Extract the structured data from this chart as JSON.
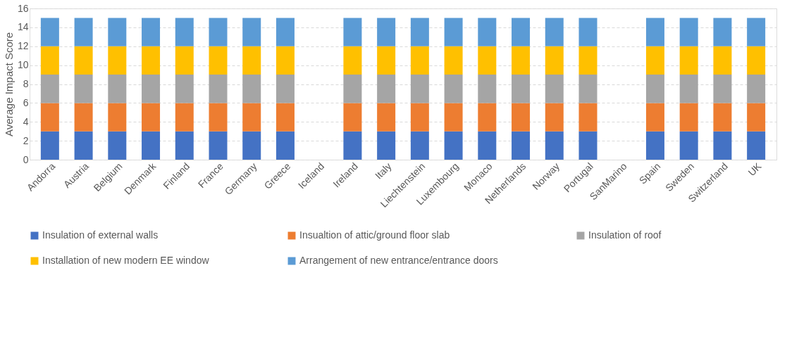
{
  "chart_data": {
    "type": "bar",
    "stacked": true,
    "ylabel": "Average Impact Score",
    "categories": [
      "Andorra",
      "Austria",
      "Belgium",
      "Denmark",
      "Finland",
      "France",
      "Germany",
      "Greece",
      "Iceland",
      "Ireland",
      "Italy",
      "Liechtenstein",
      "Luxembourg",
      "Monaco",
      "Netherlands",
      "Norway",
      "Portugal",
      "SanMarino",
      "Spain",
      "Sweden",
      "Switzerland",
      "UK"
    ],
    "series": [
      {
        "name": "Insulation of external walls",
        "color": "#4472c4",
        "values": [
          3,
          3,
          3,
          3,
          3,
          3,
          3,
          3,
          null,
          3,
          3,
          3,
          3,
          3,
          3,
          3,
          3,
          null,
          3,
          3,
          3,
          3
        ]
      },
      {
        "name": "Insualtion of attic/ground floor slab",
        "color": "#ed7d31",
        "values": [
          3,
          3,
          3,
          3,
          3,
          3,
          3,
          3,
          null,
          3,
          3,
          3,
          3,
          3,
          3,
          3,
          3,
          null,
          3,
          3,
          3,
          3
        ]
      },
      {
        "name": "Insulation of roof",
        "color": "#a5a5a5",
        "values": [
          3,
          3,
          3,
          3,
          3,
          3,
          3,
          3,
          null,
          3,
          3,
          3,
          3,
          3,
          3,
          3,
          3,
          null,
          3,
          3,
          3,
          3
        ]
      },
      {
        "name": "Installation of new modern EE window",
        "color": "#ffc000",
        "values": [
          3,
          3,
          3,
          3,
          3,
          3,
          3,
          3,
          null,
          3,
          3,
          3,
          3,
          3,
          3,
          3,
          3,
          null,
          3,
          3,
          3,
          3
        ]
      },
      {
        "name": "Arrangement of new entrance/entrance doors",
        "color": "#5b9bd5",
        "values": [
          3,
          3,
          3,
          3,
          3,
          3,
          3,
          3,
          null,
          3,
          3,
          3,
          3,
          3,
          3,
          3,
          3,
          null,
          3,
          3,
          3,
          3
        ]
      }
    ],
    "ylim": [
      0,
      16
    ],
    "yticks": [
      0,
      2,
      4,
      6,
      8,
      10,
      12,
      14,
      16
    ],
    "grid": "y",
    "legend": "bottom"
  }
}
